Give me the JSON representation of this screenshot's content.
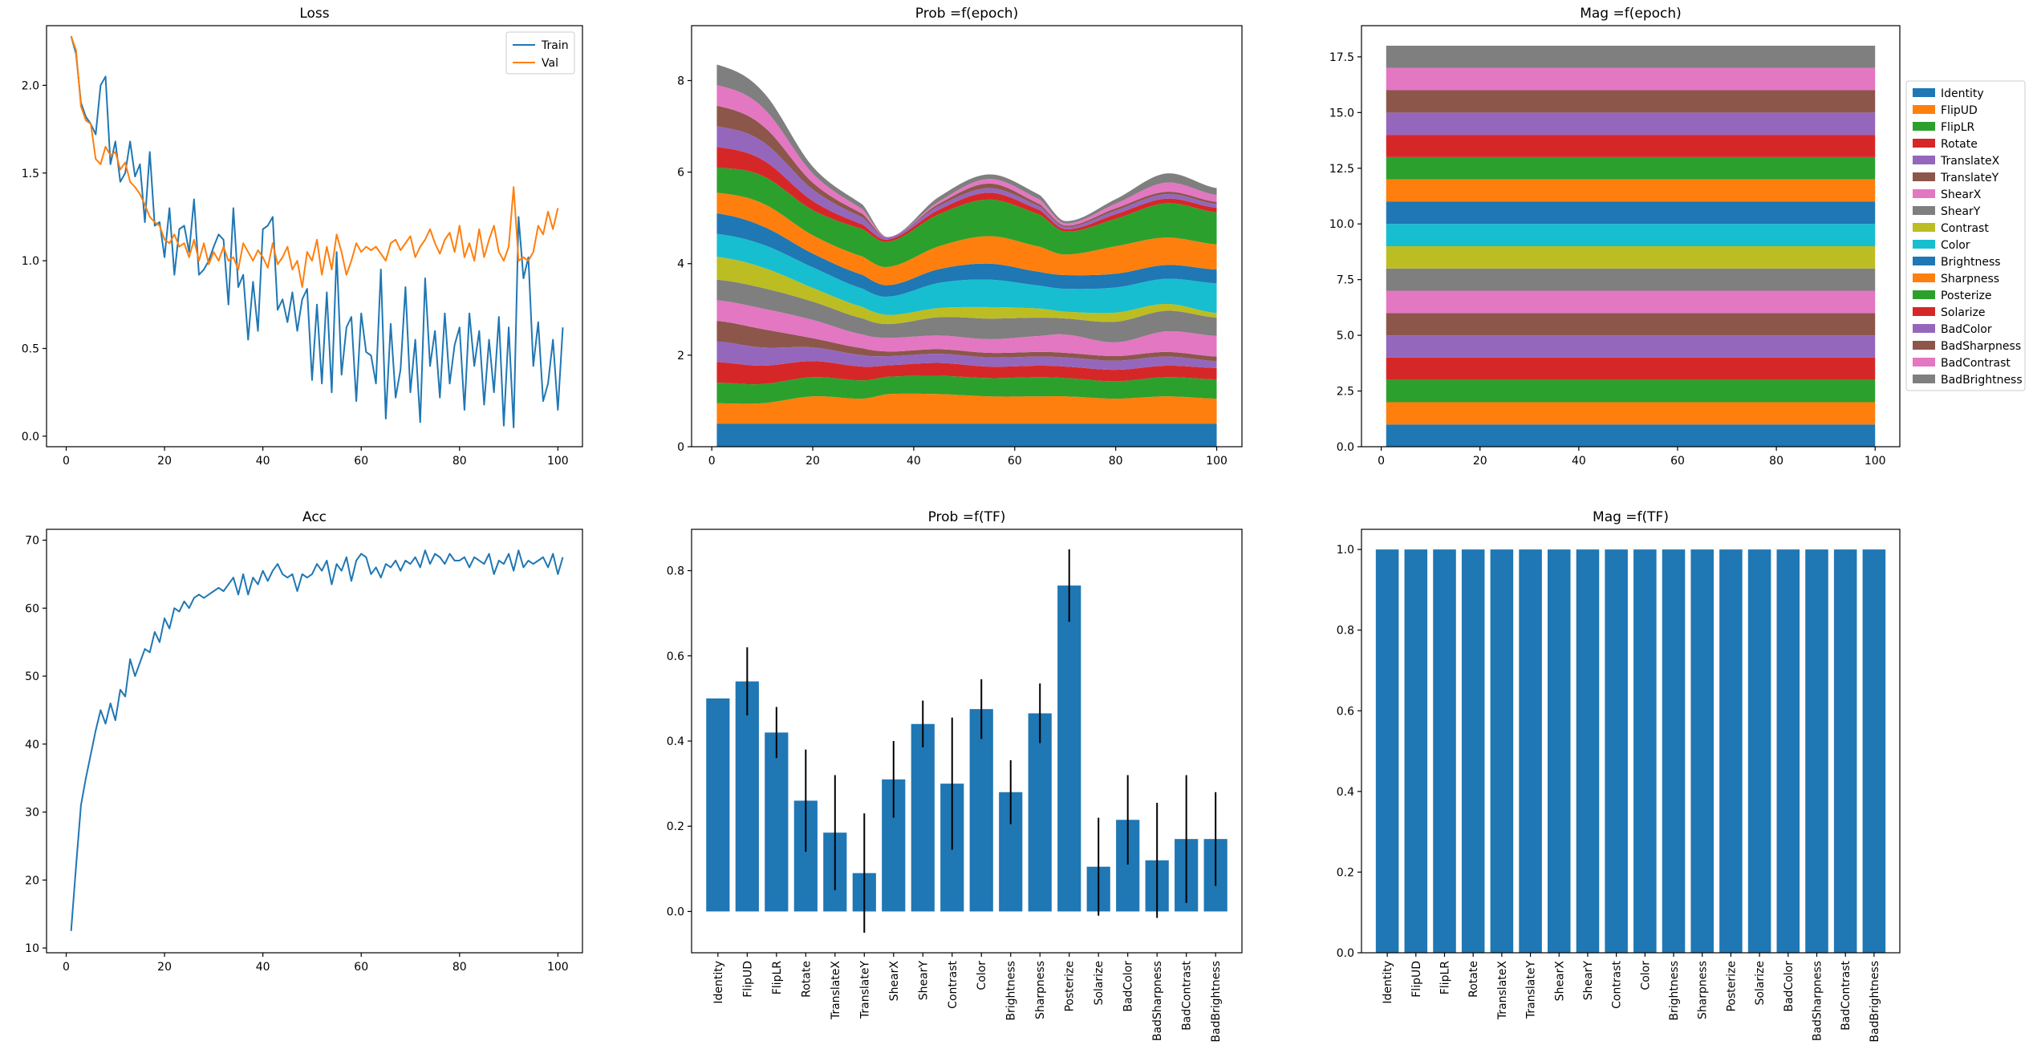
{
  "chart_data": [
    {
      "id": "loss",
      "type": "line",
      "title": "Loss",
      "xlabel": "",
      "ylabel": "",
      "xlim": [
        -4,
        105
      ],
      "ylim": [
        -0.06,
        2.34
      ],
      "xticks": [
        0,
        20,
        40,
        60,
        80,
        100
      ],
      "yticks": [
        0.0,
        0.5,
        1.0,
        1.5,
        2.0
      ],
      "ytick_format": 1,
      "legend": {
        "position": "top-right"
      },
      "series": [
        {
          "name": "Train",
          "color": "#1f77b4",
          "x_start": 1,
          "values": [
            2.28,
            2.18,
            1.9,
            1.82,
            1.78,
            1.72,
            2.0,
            2.05,
            1.55,
            1.68,
            1.45,
            1.5,
            1.68,
            1.48,
            1.55,
            1.22,
            1.62,
            1.2,
            1.22,
            1.02,
            1.3,
            0.92,
            1.18,
            1.2,
            1.05,
            1.35,
            0.92,
            0.95,
            1.0,
            1.08,
            1.15,
            1.12,
            0.75,
            1.3,
            0.85,
            0.92,
            0.55,
            0.88,
            0.6,
            1.18,
            1.2,
            1.25,
            0.72,
            0.78,
            0.65,
            0.82,
            0.6,
            0.78,
            0.84,
            0.32,
            0.75,
            0.3,
            0.82,
            0.25,
            1.05,
            0.35,
            0.62,
            0.68,
            0.2,
            0.7,
            0.48,
            0.46,
            0.3,
            0.95,
            0.1,
            0.64,
            0.22,
            0.38,
            0.85,
            0.25,
            0.55,
            0.08,
            0.9,
            0.4,
            0.6,
            0.22,
            0.7,
            0.3,
            0.52,
            0.62,
            0.15,
            0.7,
            0.4,
            0.6,
            0.18,
            0.55,
            0.25,
            0.68,
            0.06,
            0.62,
            0.05,
            1.25,
            0.9,
            1.02,
            0.4,
            0.65,
            0.2,
            0.3,
            0.55,
            0.15,
            0.62
          ]
        },
        {
          "name": "Val",
          "color": "#ff7f0e",
          "x_start": 1,
          "values": [
            2.28,
            2.2,
            1.88,
            1.8,
            1.78,
            1.58,
            1.55,
            1.65,
            1.6,
            1.62,
            1.52,
            1.56,
            1.45,
            1.42,
            1.38,
            1.32,
            1.25,
            1.22,
            1.2,
            1.12,
            1.1,
            1.15,
            1.08,
            1.1,
            1.02,
            1.12,
            1.0,
            1.1,
            0.98,
            1.05,
            1.0,
            1.08,
            1.0,
            1.02,
            0.95,
            1.1,
            1.05,
            1.0,
            1.06,
            1.02,
            0.96,
            1.1,
            0.98,
            1.02,
            1.08,
            0.95,
            1.0,
            0.85,
            1.05,
            1.0,
            1.12,
            0.92,
            1.08,
            0.95,
            1.15,
            1.05,
            0.92,
            1.0,
            1.1,
            1.05,
            1.08,
            1.06,
            1.08,
            1.04,
            1.0,
            1.1,
            1.12,
            1.06,
            1.1,
            1.14,
            1.02,
            1.08,
            1.12,
            1.18,
            1.1,
            1.04,
            1.12,
            1.16,
            1.05,
            1.2,
            1.02,
            1.1,
            1.0,
            1.18,
            1.02,
            1.12,
            1.2,
            1.05,
            1.0,
            1.08,
            1.42,
            1.0,
            1.02,
            1.0,
            1.05,
            1.2,
            1.15,
            1.28,
            1.18,
            1.3
          ]
        }
      ]
    },
    {
      "id": "prob_epoch",
      "type": "area",
      "title": "Prob =f(epoch)",
      "xlabel": "",
      "ylabel": "",
      "xlim": [
        -4,
        105
      ],
      "ylim": [
        0,
        9.2
      ],
      "xticks": [
        0,
        20,
        40,
        60,
        80,
        100
      ],
      "yticks": [
        0,
        2,
        4,
        6,
        8
      ],
      "ytick_format": 0,
      "x": [
        1,
        10,
        20,
        30,
        35,
        45,
        55,
        65,
        70,
        80,
        90,
        100
      ],
      "series": [
        {
          "name": "Identity",
          "color": "#1f77b4",
          "values": [
            0.5,
            0.5,
            0.5,
            0.5,
            0.5,
            0.5,
            0.5,
            0.5,
            0.5,
            0.5,
            0.5,
            0.5
          ]
        },
        {
          "name": "FlipUD",
          "color": "#ff7f0e",
          "values": [
            0.45,
            0.45,
            0.6,
            0.55,
            0.65,
            0.65,
            0.6,
            0.6,
            0.6,
            0.55,
            0.6,
            0.55
          ]
        },
        {
          "name": "FlipLR",
          "color": "#2ca02c",
          "values": [
            0.45,
            0.42,
            0.42,
            0.4,
            0.38,
            0.4,
            0.4,
            0.42,
            0.4,
            0.38,
            0.42,
            0.42
          ]
        },
        {
          "name": "Rotate",
          "color": "#d62728",
          "values": [
            0.45,
            0.4,
            0.35,
            0.3,
            0.25,
            0.28,
            0.25,
            0.25,
            0.25,
            0.25,
            0.25,
            0.25
          ]
        },
        {
          "name": "TranslateX",
          "color": "#9467bd",
          "values": [
            0.45,
            0.4,
            0.3,
            0.25,
            0.2,
            0.2,
            0.2,
            0.2,
            0.2,
            0.2,
            0.2,
            0.15
          ]
        },
        {
          "name": "TranslateY",
          "color": "#8c564b",
          "values": [
            0.45,
            0.4,
            0.2,
            0.15,
            0.1,
            0.1,
            0.1,
            0.1,
            0.1,
            0.1,
            0.1,
            0.1
          ]
        },
        {
          "name": "ShearX",
          "color": "#e377c2",
          "values": [
            0.45,
            0.45,
            0.4,
            0.3,
            0.3,
            0.3,
            0.3,
            0.35,
            0.4,
            0.3,
            0.45,
            0.45
          ]
        },
        {
          "name": "ShearY",
          "color": "#7f7f7f",
          "values": [
            0.45,
            0.45,
            0.4,
            0.35,
            0.3,
            0.4,
            0.45,
            0.4,
            0.35,
            0.45,
            0.45,
            0.4
          ]
        },
        {
          "name": "Contrast",
          "color": "#bcbd22",
          "values": [
            0.5,
            0.45,
            0.3,
            0.25,
            0.2,
            0.2,
            0.25,
            0.2,
            0.15,
            0.2,
            0.15,
            0.1
          ]
        },
        {
          "name": "Color",
          "color": "#17becf",
          "values": [
            0.5,
            0.5,
            0.45,
            0.4,
            0.4,
            0.55,
            0.6,
            0.5,
            0.5,
            0.55,
            0.55,
            0.65
          ]
        },
        {
          "name": "Brightness",
          "color": "#1f77b4",
          "values": [
            0.45,
            0.4,
            0.3,
            0.3,
            0.25,
            0.3,
            0.35,
            0.3,
            0.3,
            0.3,
            0.3,
            0.3
          ]
        },
        {
          "name": "Sharpness",
          "color": "#ff7f0e",
          "values": [
            0.45,
            0.5,
            0.4,
            0.4,
            0.4,
            0.5,
            0.6,
            0.55,
            0.45,
            0.6,
            0.6,
            0.55
          ]
        },
        {
          "name": "Posterize",
          "color": "#2ca02c",
          "values": [
            0.55,
            0.6,
            0.55,
            0.6,
            0.55,
            0.7,
            0.8,
            0.7,
            0.5,
            0.6,
            0.75,
            0.7
          ]
        },
        {
          "name": "Solarize",
          "color": "#d62728",
          "values": [
            0.45,
            0.35,
            0.2,
            0.1,
            0.05,
            0.1,
            0.15,
            0.1,
            0.05,
            0.1,
            0.1,
            0.1
          ]
        },
        {
          "name": "BadColor",
          "color": "#9467bd",
          "values": [
            0.45,
            0.4,
            0.25,
            0.15,
            0.05,
            0.08,
            0.1,
            0.08,
            0.05,
            0.08,
            0.1,
            0.08
          ]
        },
        {
          "name": "BadSharpness",
          "color": "#8c564b",
          "values": [
            0.45,
            0.35,
            0.15,
            0.08,
            0.0,
            0.05,
            0.1,
            0.05,
            0.03,
            0.05,
            0.05,
            0.05
          ]
        },
        {
          "name": "BadContrast",
          "color": "#e377c2",
          "values": [
            0.45,
            0.4,
            0.2,
            0.1,
            0.0,
            0.05,
            0.1,
            0.1,
            0.05,
            0.1,
            0.2,
            0.15
          ]
        },
        {
          "name": "BadBrightness",
          "color": "#7f7f7f",
          "values": [
            0.45,
            0.35,
            0.15,
            0.1,
            0.0,
            0.1,
            0.1,
            0.1,
            0.05,
            0.1,
            0.2,
            0.15
          ]
        }
      ]
    },
    {
      "id": "mag_epoch",
      "type": "area",
      "title": "Mag =f(epoch)",
      "xlabel": "",
      "ylabel": "",
      "xlim": [
        -4,
        105
      ],
      "ylim": [
        0,
        18.9
      ],
      "xticks": [
        0,
        20,
        40,
        60,
        80,
        100
      ],
      "yticks": [
        0.0,
        2.5,
        5.0,
        7.5,
        10.0,
        12.5,
        15.0,
        17.5
      ],
      "ytick_format": 1,
      "legend": {
        "position": "right-outside"
      },
      "x": [
        1,
        100
      ],
      "series": [
        {
          "name": "Identity",
          "color": "#1f77b4",
          "values": [
            1,
            1
          ]
        },
        {
          "name": "FlipUD",
          "color": "#ff7f0e",
          "values": [
            1,
            1
          ]
        },
        {
          "name": "FlipLR",
          "color": "#2ca02c",
          "values": [
            1,
            1
          ]
        },
        {
          "name": "Rotate",
          "color": "#d62728",
          "values": [
            1,
            1
          ]
        },
        {
          "name": "TranslateX",
          "color": "#9467bd",
          "values": [
            1,
            1
          ]
        },
        {
          "name": "TranslateY",
          "color": "#8c564b",
          "values": [
            1,
            1
          ]
        },
        {
          "name": "ShearX",
          "color": "#e377c2",
          "values": [
            1,
            1
          ]
        },
        {
          "name": "ShearY",
          "color": "#7f7f7f",
          "values": [
            1,
            1
          ]
        },
        {
          "name": "Contrast",
          "color": "#bcbd22",
          "values": [
            1,
            1
          ]
        },
        {
          "name": "Color",
          "color": "#17becf",
          "values": [
            1,
            1
          ]
        },
        {
          "name": "Brightness",
          "color": "#1f77b4",
          "values": [
            1,
            1
          ]
        },
        {
          "name": "Sharpness",
          "color": "#ff7f0e",
          "values": [
            1,
            1
          ]
        },
        {
          "name": "Posterize",
          "color": "#2ca02c",
          "values": [
            1,
            1
          ]
        },
        {
          "name": "Solarize",
          "color": "#d62728",
          "values": [
            1,
            1
          ]
        },
        {
          "name": "BadColor",
          "color": "#9467bd",
          "values": [
            1,
            1
          ]
        },
        {
          "name": "BadSharpness",
          "color": "#8c564b",
          "values": [
            1,
            1
          ]
        },
        {
          "name": "BadContrast",
          "color": "#e377c2",
          "values": [
            1,
            1
          ]
        },
        {
          "name": "BadBrightness",
          "color": "#7f7f7f",
          "values": [
            1,
            1
          ]
        }
      ]
    },
    {
      "id": "acc",
      "type": "line",
      "title": "Acc",
      "xlabel": "",
      "ylabel": "",
      "xlim": [
        -4,
        105
      ],
      "ylim": [
        9.3,
        71.6
      ],
      "xticks": [
        0,
        20,
        40,
        60,
        80,
        100
      ],
      "yticks": [
        10,
        20,
        30,
        40,
        50,
        60,
        70
      ],
      "ytick_format": 0,
      "series": [
        {
          "name": "",
          "color": "#1f77b4",
          "x_start": 1,
          "values": [
            12.5,
            22.0,
            31.0,
            35.0,
            38.5,
            42.0,
            45.0,
            43.0,
            46.0,
            43.5,
            48.0,
            47.0,
            52.5,
            50.0,
            52.0,
            54.0,
            53.5,
            56.5,
            55.0,
            58.5,
            57.0,
            60.0,
            59.5,
            61.0,
            60.0,
            61.5,
            62.0,
            61.5,
            62.0,
            62.5,
            63.0,
            62.5,
            63.5,
            64.5,
            62.0,
            65.0,
            62.0,
            64.5,
            63.5,
            65.5,
            64.0,
            65.5,
            66.5,
            65.0,
            64.5,
            65.0,
            62.5,
            65.0,
            64.5,
            65.0,
            66.5,
            65.5,
            67.0,
            63.5,
            66.5,
            65.5,
            67.5,
            64.0,
            67.0,
            68.0,
            67.5,
            65.0,
            66.0,
            64.5,
            66.5,
            66.0,
            67.0,
            65.5,
            67.0,
            66.5,
            67.5,
            66.0,
            68.5,
            66.5,
            68.0,
            67.5,
            66.5,
            68.0,
            67.0,
            67.0,
            67.5,
            66.0,
            67.5,
            67.0,
            66.5,
            68.0,
            65.0,
            67.0,
            66.5,
            68.0,
            65.5,
            68.5,
            66.0,
            67.0,
            66.5,
            67.0,
            67.5,
            66.0,
            68.0,
            65.0,
            67.5
          ]
        }
      ]
    },
    {
      "id": "prob_tf",
      "type": "bar",
      "title": "Prob =f(TF)",
      "xlabel": "",
      "ylabel": "",
      "ylim": [
        -0.097,
        0.897
      ],
      "yticks": [
        0.0,
        0.2,
        0.4,
        0.6,
        0.8
      ],
      "ytick_format": 1,
      "color": "#1f77b4",
      "categories": [
        "Identity",
        "FlipUD",
        "FlipLR",
        "Rotate",
        "TranslateX",
        "TranslateY",
        "ShearX",
        "ShearY",
        "Contrast",
        "Color",
        "Brightness",
        "Sharpness",
        "Posterize",
        "Solarize",
        "BadColor",
        "BadSharpness",
        "BadContrast",
        "BadBrightness"
      ],
      "values": [
        0.5,
        0.54,
        0.42,
        0.26,
        0.185,
        0.09,
        0.31,
        0.44,
        0.3,
        0.475,
        0.28,
        0.465,
        0.765,
        0.105,
        0.215,
        0.12,
        0.17,
        0.17
      ],
      "errors": [
        0.0,
        0.08,
        0.06,
        0.12,
        0.135,
        0.14,
        0.09,
        0.055,
        0.155,
        0.07,
        0.075,
        0.07,
        0.085,
        0.115,
        0.105,
        0.135,
        0.15,
        0.11
      ]
    },
    {
      "id": "mag_tf",
      "type": "bar",
      "title": "Mag =f(TF)",
      "xlabel": "",
      "ylabel": "",
      "ylim": [
        0,
        1.05
      ],
      "yticks": [
        0.0,
        0.2,
        0.4,
        0.6,
        0.8,
        1.0
      ],
      "ytick_format": 1,
      "color": "#1f77b4",
      "categories": [
        "Identity",
        "FlipUD",
        "FlipLR",
        "Rotate",
        "TranslateX",
        "TranslateY",
        "ShearX",
        "ShearY",
        "Contrast",
        "Color",
        "Brightness",
        "Sharpness",
        "Posterize",
        "Solarize",
        "BadColor",
        "BadSharpness",
        "BadContrast",
        "BadBrightness"
      ],
      "values": [
        1,
        1,
        1,
        1,
        1,
        1,
        1,
        1,
        1,
        1,
        1,
        1,
        1,
        1,
        1,
        1,
        1,
        1
      ]
    }
  ]
}
